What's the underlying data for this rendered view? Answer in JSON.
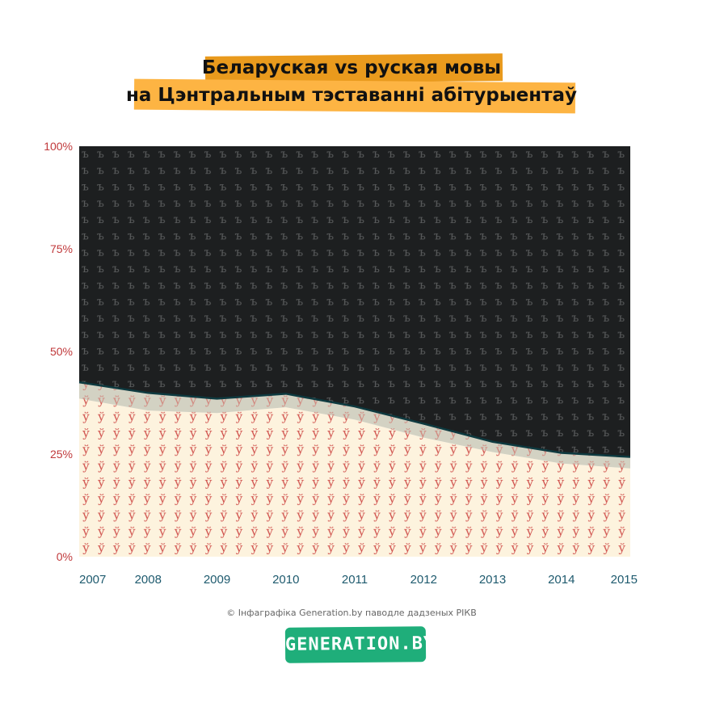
{
  "title": {
    "line1": "Беларуская vs руская мовы",
    "line2": "на Цэнтральным тэставанні абітурыентаў"
  },
  "credit": "© Інфаграфіка Generation.by паводле дадзеных РІКВ",
  "logo_text": "GENERATION.BY",
  "colors": {
    "belarusian": "#fdf3de",
    "belarusian_glyph": "#d0514c",
    "middle_band": "#d3d2c3",
    "russian": "#1d1f20",
    "russian_glyph": "#5a5c5d",
    "boundary": "#0e3a40",
    "y_tick": "#c0393b",
    "x_tick": "#1e5a6e",
    "title_bar_1": "#e99a1d",
    "title_bar_2": "#fdb443",
    "logo_bg": "#1fae7a"
  },
  "pattern_glyphs": {
    "belarusian": "ў",
    "russian": "ъ"
  },
  "chart_data": {
    "type": "area",
    "stacked": true,
    "categories": [
      "2007",
      "2008",
      "2009",
      "2010",
      "2011",
      "2012",
      "2013",
      "2014",
      "2015"
    ],
    "series": [
      {
        "values": [
          38.5,
          35.6,
          35.0,
          36.4,
          33.4,
          29.0,
          25.5,
          22.7,
          21.5
        ]
      },
      {
        "values": [
          4.0,
          4.3,
          3.5,
          3.3,
          3.2,
          3.4,
          2.5,
          2.6,
          2.8
        ]
      },
      {
        "values": [
          57.5,
          60.1,
          61.5,
          60.3,
          63.4,
          67.6,
          72.0,
          74.7,
          75.7
        ]
      }
    ],
    "yticks": [
      "0%",
      "25%",
      "50%",
      "75%",
      "100%"
    ],
    "ylim": [
      0,
      100
    ],
    "xlabel": "",
    "ylabel": "",
    "grid": false
  }
}
